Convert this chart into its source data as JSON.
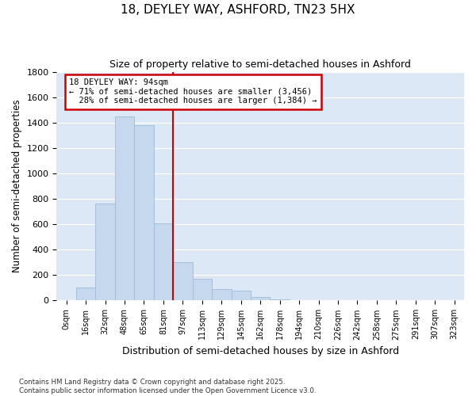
{
  "title": "18, DEYLEY WAY, ASHFORD, TN23 5HX",
  "subtitle": "Size of property relative to semi-detached houses in Ashford",
  "xlabel": "Distribution of semi-detached houses by size in Ashford",
  "ylabel": "Number of semi-detached properties",
  "bar_color": "#c5d8ee",
  "bar_edge_color": "#a0bbd8",
  "plot_bg_color": "#dce8f5",
  "fig_bg_color": "#ffffff",
  "grid_color": "#ffffff",
  "categories": [
    "0sqm",
    "16sqm",
    "32sqm",
    "48sqm",
    "65sqm",
    "81sqm",
    "97sqm",
    "113sqm",
    "129sqm",
    "145sqm",
    "162sqm",
    "178sqm",
    "194sqm",
    "210sqm",
    "226sqm",
    "242sqm",
    "258sqm",
    "275sqm",
    "291sqm",
    "307sqm",
    "323sqm"
  ],
  "values": [
    5,
    100,
    760,
    1450,
    1380,
    610,
    300,
    170,
    90,
    80,
    30,
    8,
    5,
    3,
    2,
    2,
    2,
    2,
    2,
    2,
    2
  ],
  "property_bin_index": 6,
  "property_label": "18 DEYLEY WAY: 94sqm",
  "pct_smaller": "71%",
  "count_smaller": "3,456",
  "pct_larger": "28%",
  "count_larger": "1,384",
  "red_line_color": "#cc0000",
  "ylim": [
    0,
    1800
  ],
  "yticks": [
    0,
    200,
    400,
    600,
    800,
    1000,
    1200,
    1400,
    1600,
    1800
  ],
  "footer_line1": "Contains HM Land Registry data © Crown copyright and database right 2025.",
  "footer_line2": "Contains public sector information licensed under the Open Government Licence v3.0."
}
